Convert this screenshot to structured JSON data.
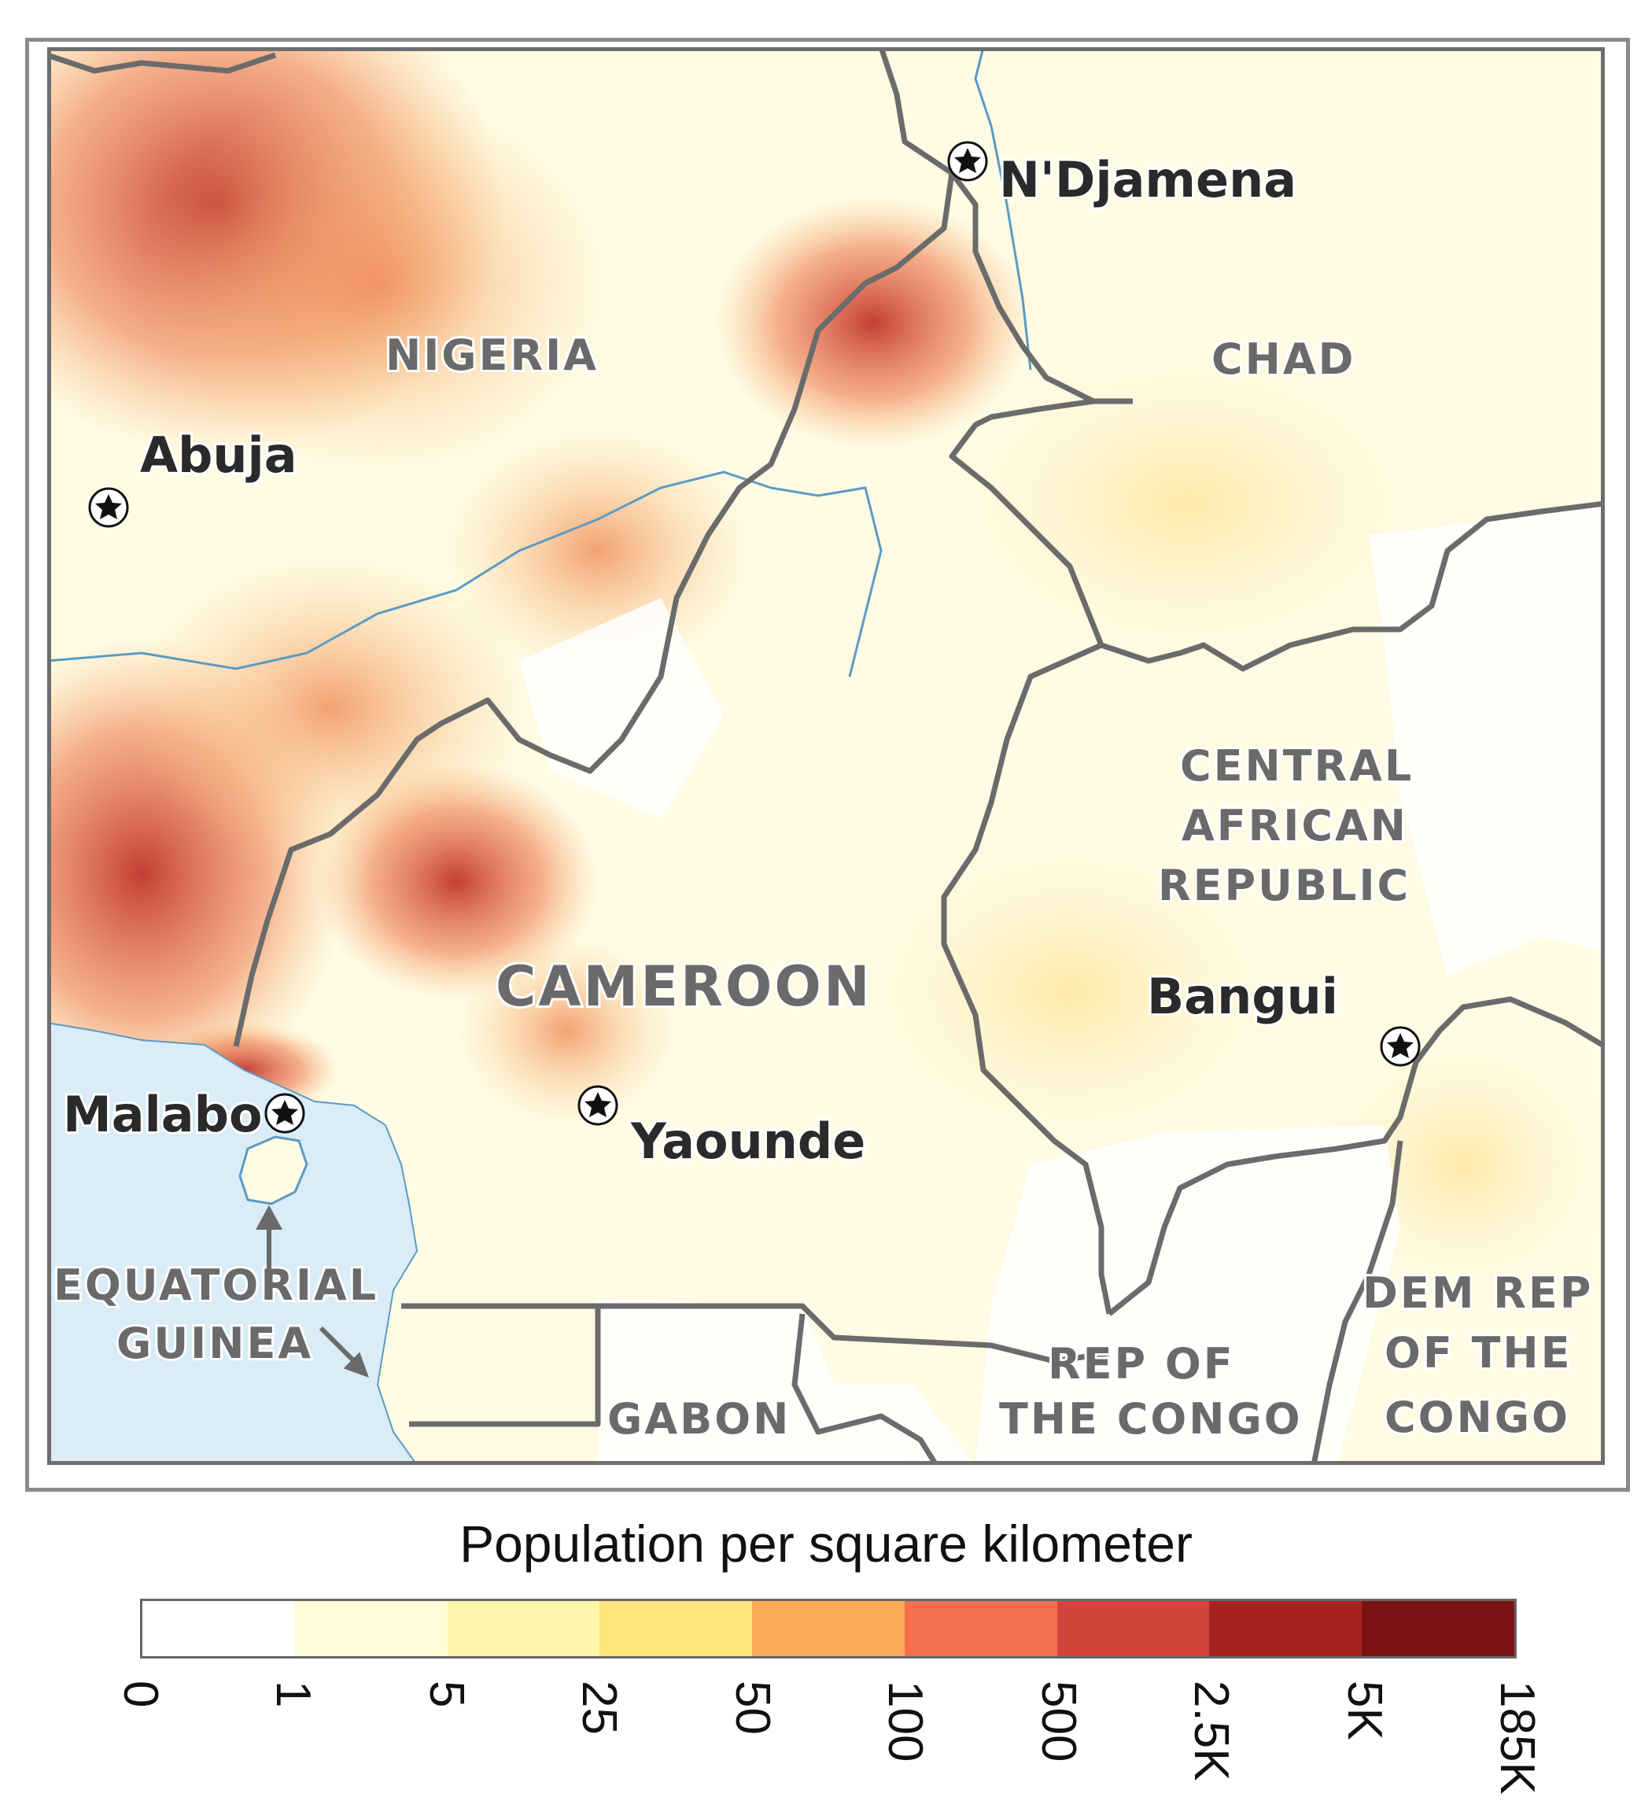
{
  "map": {
    "labels": {
      "nigeria": "NIGERIA",
      "chad": "CHAD",
      "car_line1": "CENTRAL",
      "car_line2": "AFRICAN",
      "car_line3": "REPUBLIC",
      "cameroon": "CAMEROON",
      "eq_guinea_line1": "EQUATORIAL",
      "eq_guinea_line2": "GUINEA",
      "gabon": "GABON",
      "congo_line1": "REP OF",
      "congo_line2": "THE CONGO",
      "drc_line1": "DEM REP",
      "drc_line2": "OF THE",
      "drc_line3": "CONGO"
    },
    "cities": {
      "ndjamena": "N'Djamena",
      "abuja": "Abuja",
      "malabo": "Malabo",
      "yaounde": "Yaounde",
      "bangui": "Bangui"
    },
    "colors": {
      "water": "#d9ecf8",
      "border": "#6b6b6b",
      "river": "#5a9bc4",
      "capital_marker": "#111111"
    }
  },
  "legend": {
    "title": "Population per square kilometer",
    "colors": [
      "#ffffff",
      "#fefbd6",
      "#fef6a8",
      "#fde57c",
      "#fca955",
      "#f46f4c",
      "#d2433b",
      "#a6241f",
      "#7b1213"
    ],
    "ticks": [
      "0",
      "1",
      "5",
      "25",
      "50",
      "100",
      "500",
      "2.5K",
      "5K",
      "185K"
    ]
  }
}
